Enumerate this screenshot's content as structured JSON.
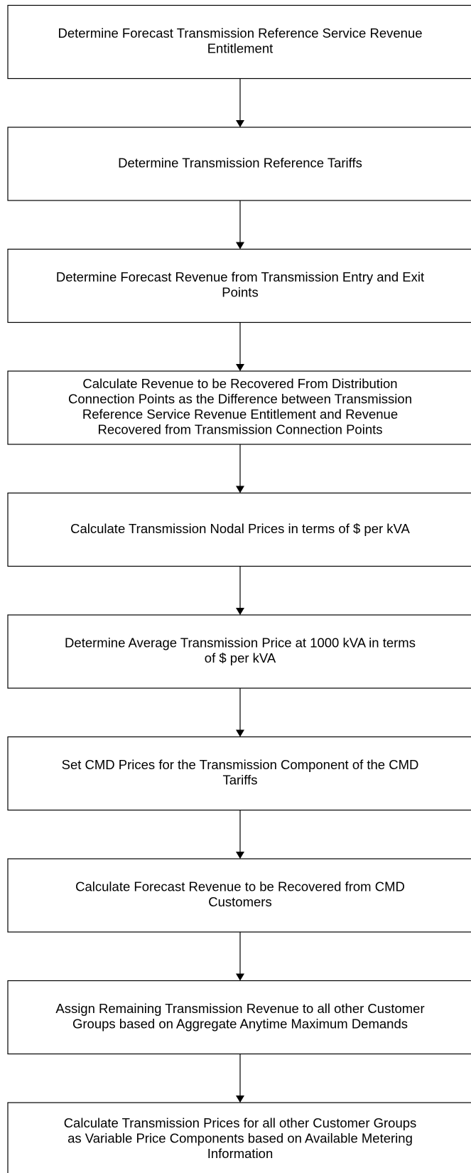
{
  "nodes": [
    {
      "lines": [
        "Determine Forecast Transmission Reference Service Revenue",
        "Entitlement"
      ]
    },
    {
      "lines": [
        "Determine Transmission Reference Tariffs"
      ]
    },
    {
      "lines": [
        "Determine Forecast Revenue from Transmission Entry and Exit",
        "Points"
      ]
    },
    {
      "lines": [
        "Calculate Revenue to be Recovered From Distribution",
        "Connection Points as the Difference between Transmission",
        "Reference Service Revenue Entitlement and Revenue",
        "Recovered from Transmission Connection Points"
      ]
    },
    {
      "lines": [
        "Calculate Transmission Nodal Prices in terms of $ per kVA"
      ]
    },
    {
      "lines": [
        "Determine Average Transmission Price at 1000 kVA in terms",
        "of $ per kVA"
      ]
    },
    {
      "lines": [
        "Set CMD Prices for the Transmission Component of the CMD",
        "Tariffs"
      ]
    },
    {
      "lines": [
        "Calculate Forecast Revenue to be Recovered from CMD",
        "Customers"
      ]
    },
    {
      "lines": [
        "Assign Remaining Transmission Revenue to all other Customer",
        "Groups based on Aggregate Anytime Maximum Demands"
      ]
    },
    {
      "lines": [
        "Calculate Transmission Prices for all other Customer Groups",
        "as Variable Price Components based on Available Metering",
        "Information"
      ]
    }
  ]
}
